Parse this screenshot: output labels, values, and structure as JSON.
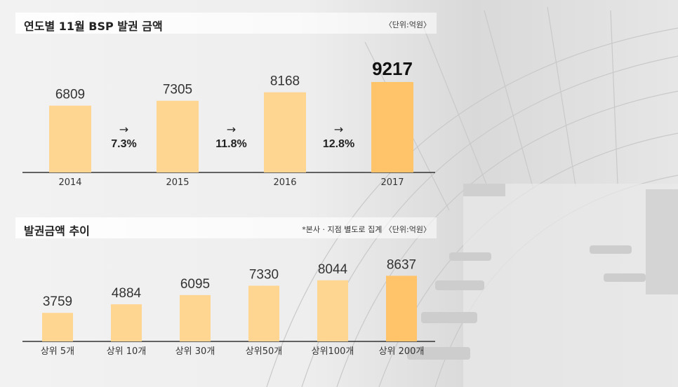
{
  "chart_data": [
    {
      "type": "bar",
      "title": "연도별 11월 BSP 발권 금액",
      "unit": "〈단위:억원〉",
      "categories": [
        "2014",
        "2015",
        "2016",
        "2017"
      ],
      "values": [
        6809,
        7305,
        8168,
        9217
      ],
      "growth_labels": [
        "7.3%",
        "11.8%",
        "12.8%"
      ],
      "growth_arrow": "→",
      "highlight_index": 3,
      "ylim": [
        0,
        9500
      ]
    },
    {
      "type": "bar",
      "title": "발권금액 추이",
      "unit": "*본사 · 지점 별도로 집계 〈단위:억원〉",
      "categories": [
        "상위 5개",
        "상위 10개",
        "상위 30개",
        "상위50개",
        "상위100개",
        "상위 200개"
      ],
      "values": [
        3759,
        4884,
        6095,
        7330,
        8044,
        8637
      ],
      "highlight_index": 5,
      "ylim": [
        0,
        9500
      ]
    }
  ],
  "colors": {
    "bar": "#ffd592",
    "bar_highlight": "#ffc36a",
    "axis": "#333333",
    "text": "#333333"
  }
}
